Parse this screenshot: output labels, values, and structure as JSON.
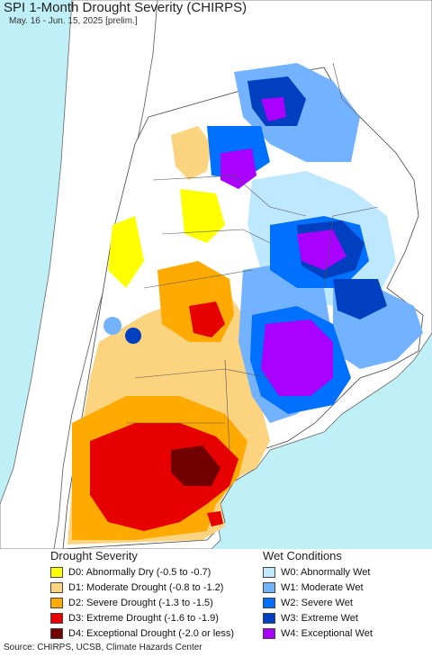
{
  "header": {
    "title": "SPI 1-Month Drought Severity (CHIRPS)",
    "subtitle": "May. 16 - Jun. 15, 2025 [prelim.]"
  },
  "legend": {
    "drought_title": "Drought Severity",
    "wet_title": "Wet Conditions",
    "drought": [
      {
        "label": "D0: Abnormally Dry (-0.5 to -0.7)",
        "color": "#ffff00"
      },
      {
        "label": "D1: Moderate Drought (-0.8 to -1.2)",
        "color": "#fcd37f"
      },
      {
        "label": "D2: Severe Drought (-1.3 to -1.5)",
        "color": "#ffaa00"
      },
      {
        "label": "D3: Extreme Drought (-1.6 to -1.9)",
        "color": "#e60000"
      },
      {
        "label": "D4: Exceptional Drought (-2.0 or less)",
        "color": "#730000"
      }
    ],
    "wet": [
      {
        "label": "W0: Abnormally Wet",
        "color": "#bee8ff"
      },
      {
        "label": "W1: Moderate Wet",
        "color": "#73b2ff"
      },
      {
        "label": "W2: Severe Wet",
        "color": "#0070ff"
      },
      {
        "label": "W3: Extreme Wet",
        "color": "#0040c0"
      },
      {
        "label": "W4: Exceptional Wet",
        "color": "#aa00ff"
      }
    ]
  },
  "footer": {
    "source": "Source: CHIRPS, UCSB, Climate Hazards Center"
  },
  "colors": {
    "ocean": "#bfeff7",
    "land_outside": "#ffffff",
    "border": "#555555"
  }
}
